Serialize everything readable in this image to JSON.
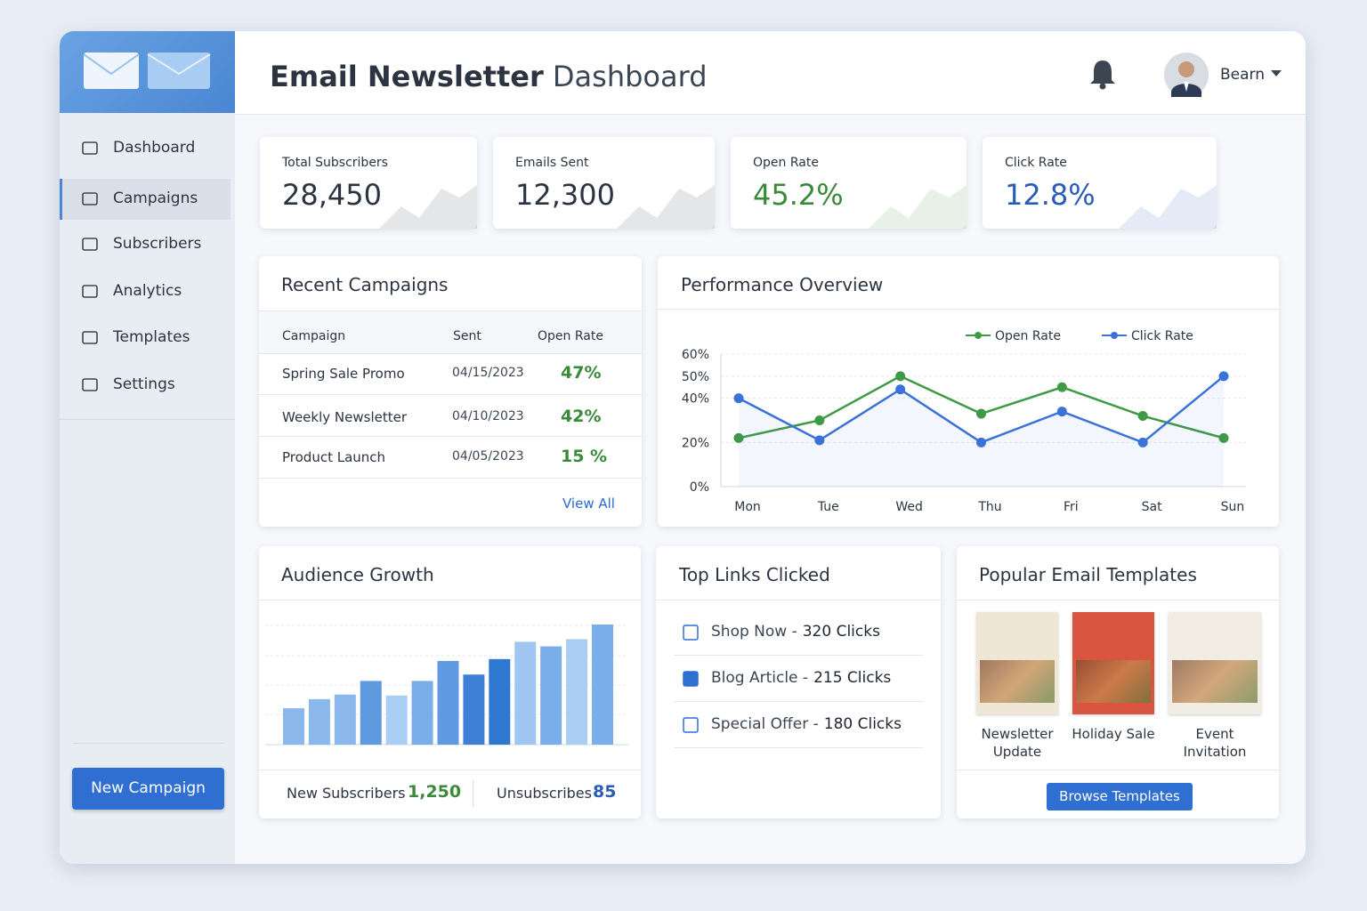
{
  "header": {
    "title_bold": "Email Newsletter",
    "title_rest": "Dashboard",
    "user": "Bearn"
  },
  "sidebar": {
    "nav": [
      "Dashboard",
      "Campaigns",
      "Subscribers",
      "Analytics",
      "Templates",
      "Settings"
    ],
    "active": 1,
    "button": "New Campaign"
  },
  "kpis": [
    {
      "label": "Total Subscribers",
      "value": "28,450",
      "color": "#2b3440"
    },
    {
      "label": "Emails Sent",
      "value": "12,300",
      "color": "#2b3440"
    },
    {
      "label": "Open Rate",
      "value": "45.2%",
      "color": "#3a8a3a"
    },
    {
      "label": "Click Rate",
      "value": "12.8%",
      "color": "#2a5bb5"
    }
  ],
  "recent_campaigns": {
    "title": "Recent Campaigns",
    "columns": [
      "Campaign",
      "Sent",
      "Open Rate"
    ],
    "rows": [
      [
        "Spring Sale Promo",
        "04/15/2023",
        "47%"
      ],
      [
        "Weekly Newsletter",
        "04/10/2023",
        "42%"
      ],
      [
        "Product Launch",
        "04/05/2023",
        "15 %"
      ]
    ],
    "link": "View All"
  },
  "performance": {
    "title": "Performance Overview",
    "chart_data": {
      "type": "line",
      "categories": [
        "Mon",
        "Tue",
        "Wed",
        "Thu",
        "Fri",
        "Sat",
        "Sun"
      ],
      "series": [
        {
          "name": "Open Rate",
          "color": "#3f9a45",
          "values": [
            22,
            30,
            50,
            33,
            45,
            32,
            22
          ]
        },
        {
          "name": "Click Rate",
          "color": "#3a72d8",
          "values": [
            40,
            21,
            44,
            20,
            34,
            20,
            50
          ]
        }
      ],
      "ylim": [
        0,
        60
      ],
      "yticks": [
        {
          "value": 0,
          "label": "0%"
        },
        {
          "value": 20,
          "label": "20%"
        },
        {
          "value": 40,
          "label": "40%"
        },
        {
          "value": 50,
          "label": "50%"
        },
        {
          "value": 60,
          "label": "60%"
        }
      ],
      "grid": true
    }
  },
  "audience": {
    "title": "Audience Growth",
    "chart_data": {
      "type": "bar",
      "values": [
        40,
        50,
        55,
        70,
        54,
        70,
        92,
        77,
        94,
        113,
        108,
        116,
        132
      ],
      "colors": [
        "#8ab8ec",
        "#8ab8ec",
        "#8ab8ec",
        "#5f9ae0",
        "#a9cdf3",
        "#7aaee8",
        "#5f9ae0",
        "#3d80d6",
        "#2f78d0",
        "#9ec6f0",
        "#7aaee8",
        "#a9cdf3",
        "#7aaee8"
      ]
    },
    "stats": [
      {
        "label": "New Subscribers",
        "value": "1,250",
        "color": "#3a8a3a"
      },
      {
        "label": "Unsubscribes",
        "value": "85",
        "color": "#2a5bb5"
      }
    ]
  },
  "top_links": {
    "title": "Top Links Clicked",
    "items": [
      {
        "label": "Shop Now -",
        "clicks": "320 Clicks"
      },
      {
        "label": "Blog Article -",
        "clicks": "215 Clicks"
      },
      {
        "label": "Special Offer -",
        "clicks": "180 Clicks"
      }
    ]
  },
  "templates": {
    "title": "Popular Email Templates",
    "items": [
      {
        "name": "Newsletter Update",
        "color": "#efe6d6"
      },
      {
        "name": "Holiday Sale",
        "color": "#d9553f"
      },
      {
        "name": "Event Invitation",
        "color": "#f1ece4"
      }
    ],
    "button": "Browse Templates"
  }
}
